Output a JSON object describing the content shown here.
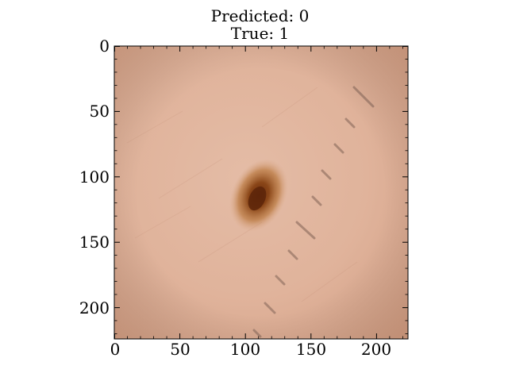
{
  "figure": {
    "title_lines": [
      "Predicted: 0",
      "True: 1"
    ]
  },
  "axes": {
    "x_ticks": [
      "0",
      "50",
      "100",
      "150",
      "200"
    ],
    "y_ticks": [
      "0",
      "50",
      "100",
      "150",
      "200"
    ],
    "xlim": [
      0,
      224
    ],
    "ylim": [
      224,
      0
    ]
  },
  "image": {
    "subject": "dermoscopic skin lesion",
    "background_color": "#e2b49c",
    "lesion_color": "#7a3a12"
  }
}
